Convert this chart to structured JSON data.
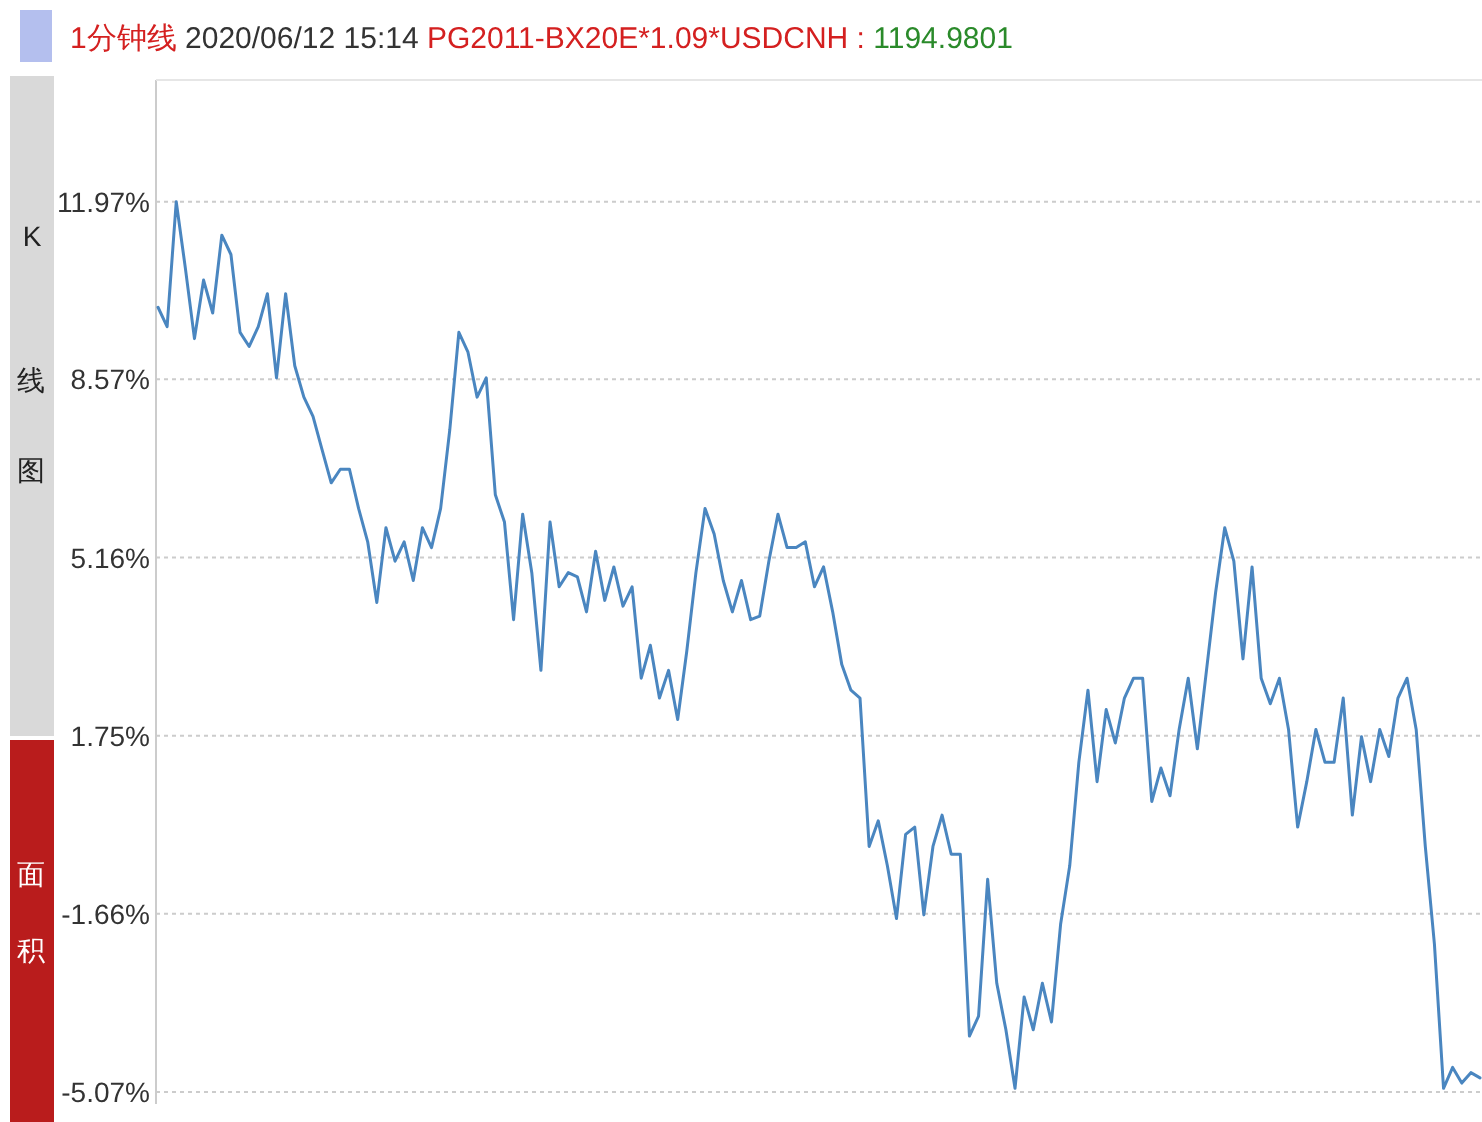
{
  "chart_data": {
    "type": "line",
    "title": "1分钟线",
    "subtitle": "2020/06/12 15:14",
    "annotations": [
      "PG2011-BX20E*1.09*USDCNH :",
      "1194.9801",
      "K线图",
      "面积"
    ],
    "categories": [
      null,
      null,
      null,
      null,
      null,
      null,
      null,
      null,
      null,
      null,
      null,
      null,
      null,
      null,
      null,
      null,
      null,
      null,
      null,
      null,
      null,
      null,
      null,
      null,
      null,
      null,
      null,
      null,
      null,
      null,
      null,
      null,
      null,
      null,
      null,
      null,
      null,
      null,
      null,
      null,
      null,
      null,
      null,
      null,
      null,
      null,
      null,
      null,
      null,
      null,
      null,
      null,
      null,
      null,
      null,
      null,
      null,
      null,
      null,
      null,
      null,
      null,
      null,
      null,
      null,
      null,
      null,
      null,
      null,
      null,
      null,
      null,
      null,
      null,
      null,
      null,
      null,
      null,
      null,
      null,
      null,
      null,
      null,
      null,
      null,
      null,
      null,
      null,
      null,
      null,
      null,
      null,
      null,
      null,
      null,
      null,
      null,
      null,
      null,
      null,
      null,
      null,
      null,
      null,
      null,
      null,
      null,
      null,
      null,
      null,
      null,
      null,
      null,
      null,
      null,
      null,
      null,
      null,
      null,
      null,
      null,
      null,
      null,
      null,
      null,
      null,
      null,
      null,
      null,
      null,
      null,
      null,
      null,
      null,
      null,
      null,
      null,
      null,
      null,
      null,
      null,
      null,
      null,
      null,
      null,
      null
    ],
    "ylim": [
      -5.3,
      14.3
    ],
    "yticks": [
      {
        "value": 11.97,
        "label": "11.97%"
      },
      {
        "value": 8.57,
        "label": "8.57%"
      },
      {
        "value": 5.16,
        "label": "5.16%"
      },
      {
        "value": 1.75,
        "label": "1.75%"
      },
      {
        "value": -1.66,
        "label": "-1.66%"
      },
      {
        "value": -5.07,
        "label": "-5.07%"
      }
    ],
    "grid": "y",
    "marker": "none",
    "line_style": "solid",
    "series": [
      {
        "color": "#4a86c0",
        "values": [
          9.95,
          9.58,
          11.97,
          10.7,
          9.35,
          10.47,
          9.84,
          11.33,
          10.96,
          9.47,
          9.2,
          9.58,
          10.21,
          8.6,
          10.21,
          8.83,
          8.23,
          7.86,
          7.22,
          6.59,
          6.85,
          6.85,
          6.1,
          5.46,
          4.3,
          5.73,
          5.09,
          5.46,
          4.72,
          5.73,
          5.35,
          6.1,
          7.6,
          9.47,
          9.09,
          8.23,
          8.6,
          6.36,
          5.84,
          3.97,
          5.99,
          4.87,
          3.0,
          5.84,
          4.6,
          4.87,
          4.79,
          4.12,
          5.28,
          4.34,
          4.98,
          4.23,
          4.6,
          2.85,
          3.48,
          2.47,
          3.0,
          2.06,
          3.37,
          4.87,
          6.1,
          5.61,
          4.72,
          4.12,
          4.72,
          3.97,
          4.04,
          5.09,
          5.99,
          5.35,
          5.35,
          5.46,
          4.6,
          4.98,
          4.12,
          3.11,
          2.62,
          2.47,
          -0.37,
          0.12,
          -0.74,
          -1.75,
          -0.14,
          0.0,
          -1.68,
          -0.37,
          0.23,
          -0.52,
          -0.52,
          -4.0,
          -3.62,
          -1.0,
          -2.99,
          -3.88,
          -5.0,
          -3.25,
          -3.88,
          -2.99,
          -3.73,
          -1.86,
          -0.74,
          1.24,
          2.62,
          0.87,
          2.25,
          1.61,
          2.47,
          2.85,
          2.85,
          0.49,
          1.13,
          0.6,
          1.87,
          2.85,
          1.5,
          3.0,
          4.49,
          5.73,
          5.09,
          3.22,
          4.98,
          2.85,
          2.36,
          2.85,
          1.87,
          0.0,
          0.87,
          1.87,
          1.24,
          1.24,
          2.47,
          0.23,
          1.73,
          0.87,
          1.87,
          1.35,
          2.47,
          2.85,
          1.87,
          -0.37,
          -2.24,
          -5.0,
          -4.6,
          -4.9,
          -4.7,
          -4.8
        ]
      }
    ]
  }
}
